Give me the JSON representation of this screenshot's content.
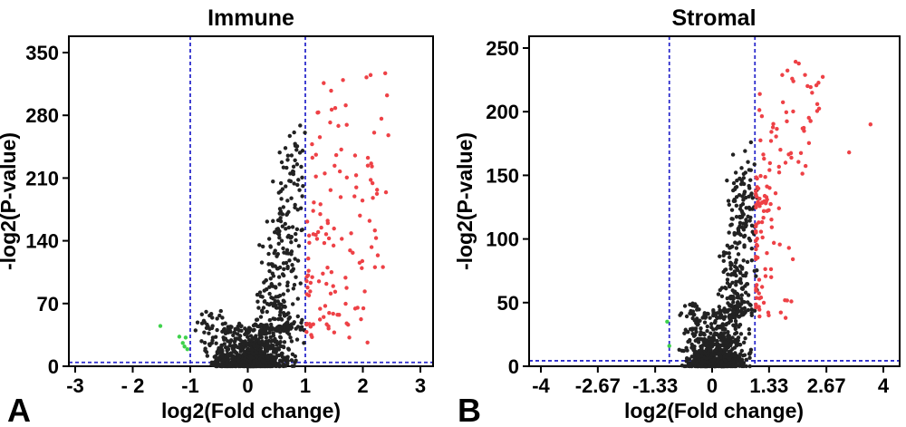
{
  "figure": {
    "background": "#ffffff",
    "colors": {
      "not_significant": "#222222",
      "significant_up": "#ee4146",
      "significant_down": "#3fd24c",
      "threshold_line": "#2b2bcc",
      "axis": "#000000"
    },
    "seed": 7,
    "dot_radius": 2.2
  },
  "chart_data": [
    {
      "type": "scatter",
      "panel_label": "A",
      "title": "Immune",
      "xlabel": "log2(Fold change)",
      "ylabel": "-log2(P-value)",
      "xlim": [
        -3.11,
        3.22
      ],
      "ylim": [
        0,
        368
      ],
      "xticks": {
        "values": [
          -3,
          -2,
          -1,
          0,
          1,
          2,
          3
        ],
        "labels": [
          "-3",
          "- 2",
          "-1",
          "0",
          "1",
          "2",
          "3"
        ]
      },
      "yticks": {
        "values": [
          0,
          70,
          140,
          210,
          280,
          350
        ],
        "labels": [
          "0",
          "70",
          "140",
          "210",
          "280",
          "350"
        ]
      },
      "thresholds": {
        "vlines": [
          -1,
          1
        ],
        "hline": 4.32
      },
      "legend": "none",
      "grid": false,
      "series": [
        {
          "name": "not-significant",
          "color_key": "not_significant",
          "points": [],
          "clusters": [
            {
              "n": 520,
              "x": {
                "type": "normal",
                "mu": 0.05,
                "sd": 0.3,
                "min": -0.72,
                "max": 0.85
              },
              "y": {
                "type": "power",
                "min": 0,
                "max": 13,
                "exp": 2.5
              }
            },
            {
              "n": 260,
              "x": {
                "type": "normal",
                "mu": 0.05,
                "sd": 0.3,
                "min": -0.65,
                "max": 0.85
              },
              "y": {
                "type": "power",
                "min": 0,
                "max": 28,
                "exp": 1.4
              }
            },
            {
              "n": 150,
              "x": {
                "type": "normal",
                "mu": 0.18,
                "sd": 0.34,
                "min": -0.8,
                "max": 0.98
              },
              "y": {
                "type": "uniform",
                "min": 18,
                "max": 48
              }
            },
            {
              "n": 55,
              "x": {
                "type": "normal",
                "mu": -0.55,
                "sd": 0.2,
                "min": -0.95,
                "max": -0.15
              },
              "y": {
                "type": "power",
                "min": 14,
                "max": 62,
                "exp": 1.3
              }
            },
            {
              "n": 130,
              "x": {
                "type": "normal",
                "mu": 0.5,
                "sd": 0.24,
                "min": 0.05,
                "max": 1.0
              },
              "y": {
                "type": "power",
                "min": 40,
                "max": 100,
                "exp": 1.5
              }
            },
            {
              "n": 80,
              "x": {
                "type": "normal",
                "mu": 0.62,
                "sd": 0.2,
                "min": 0.2,
                "max": 1.0
              },
              "y": {
                "type": "uniform",
                "min": 100,
                "max": 175
              }
            },
            {
              "n": 42,
              "x": {
                "type": "normal",
                "mu": 0.75,
                "sd": 0.16,
                "min": 0.35,
                "max": 1.0
              },
              "y": {
                "type": "uniform",
                "min": 175,
                "max": 245
              }
            },
            {
              "n": 7,
              "x": {
                "type": "normal",
                "mu": 0.85,
                "sd": 0.1,
                "min": 0.6,
                "max": 1.0
              },
              "y": {
                "type": "uniform",
                "min": 245,
                "max": 272
              }
            }
          ]
        },
        {
          "name": "up-regulated",
          "color_key": "significant_up",
          "points": [],
          "clusters": [
            {
              "n": 40,
              "x": {
                "type": "power",
                "min": 1.02,
                "max": 2.1,
                "exp": 2.0
              },
              "y": {
                "type": "uniform",
                "min": 25,
                "max": 90
              }
            },
            {
              "n": 45,
              "x": {
                "type": "power",
                "min": 1.02,
                "max": 2.4,
                "exp": 1.8
              },
              "y": {
                "type": "uniform",
                "min": 90,
                "max": 175
              }
            },
            {
              "n": 38,
              "x": {
                "type": "power",
                "min": 1.1,
                "max": 2.5,
                "exp": 1.3
              },
              "y": {
                "type": "uniform",
                "min": 175,
                "max": 285
              }
            },
            {
              "n": 10,
              "x": {
                "type": "uniform",
                "min": 1.3,
                "max": 2.45
              },
              "y": {
                "type": "uniform",
                "min": 285,
                "max": 332
              }
            }
          ]
        },
        {
          "name": "down-regulated",
          "color_key": "significant_down",
          "clusters": [],
          "points": [
            [
              -1.52,
              45
            ],
            [
              -1.19,
              33
            ],
            [
              -1.08,
              32
            ],
            [
              -1.13,
              26
            ],
            [
              -1.1,
              22
            ],
            [
              -1.05,
              19
            ]
          ]
        }
      ]
    },
    {
      "type": "scatter",
      "panel_label": "B",
      "title": "Stromal",
      "xlabel": "log2(Fold change)",
      "ylabel": "-log2(P-value)",
      "xlim": [
        -4.28,
        4.38
      ],
      "ylim": [
        0,
        259
      ],
      "xticks": {
        "values": [
          -4,
          -2.67,
          -1.33,
          0,
          1.33,
          2.67,
          4
        ],
        "labels": [
          "-4",
          "-2.67",
          "-1.33",
          "0",
          "1.33",
          "2.67",
          "4"
        ]
      },
      "yticks": {
        "values": [
          0,
          50,
          100,
          150,
          200,
          250
        ],
        "labels": [
          "0",
          "50",
          "100",
          "150",
          "200",
          "250"
        ]
      },
      "thresholds": {
        "vlines": [
          -1,
          1
        ],
        "hline": 4.32
      },
      "legend": "none",
      "grid": false,
      "series": [
        {
          "name": "not-significant",
          "color_key": "not_significant",
          "points": [],
          "clusters": [
            {
              "n": 500,
              "x": {
                "type": "normal",
                "mu": 0.08,
                "sd": 0.28,
                "min": -0.7,
                "max": 0.9
              },
              "y": {
                "type": "power",
                "min": 0,
                "max": 12,
                "exp": 2.5
              }
            },
            {
              "n": 250,
              "x": {
                "type": "normal",
                "mu": 0.1,
                "sd": 0.3,
                "min": -0.7,
                "max": 0.95
              },
              "y": {
                "type": "power",
                "min": 0,
                "max": 26,
                "exp": 1.4
              }
            },
            {
              "n": 140,
              "x": {
                "type": "normal",
                "mu": 0.2,
                "sd": 0.32,
                "min": -0.8,
                "max": 1.0
              },
              "y": {
                "type": "uniform",
                "min": 16,
                "max": 45
              }
            },
            {
              "n": 50,
              "x": {
                "type": "normal",
                "mu": -0.5,
                "sd": 0.18,
                "min": -0.9,
                "max": -0.1
              },
              "y": {
                "type": "power",
                "min": 12,
                "max": 50,
                "exp": 1.4
              }
            },
            {
              "n": 150,
              "x": {
                "type": "normal",
                "mu": 0.55,
                "sd": 0.22,
                "min": 0.1,
                "max": 1.05
              },
              "y": {
                "type": "power",
                "min": 40,
                "max": 95,
                "exp": 1.4
              }
            },
            {
              "n": 95,
              "x": {
                "type": "normal",
                "mu": 0.68,
                "sd": 0.18,
                "min": 0.25,
                "max": 1.05
              },
              "y": {
                "type": "uniform",
                "min": 95,
                "max": 148
              }
            },
            {
              "n": 11,
              "x": {
                "type": "normal",
                "mu": 0.7,
                "sd": 0.2,
                "min": 0.3,
                "max": 1.0
              },
              "y": {
                "type": "uniform",
                "min": 148,
                "max": 178
              }
            }
          ]
        },
        {
          "name": "up-regulated",
          "color_key": "significant_up",
          "clusters": [
            {
              "n": 35,
              "x": {
                "type": "power",
                "min": 1.02,
                "max": 2.0,
                "exp": 2.0
              },
              "y": {
                "type": "uniform",
                "min": 35,
                "max": 95
              }
            },
            {
              "n": 50,
              "x": {
                "type": "power",
                "min": 1.02,
                "max": 1.6,
                "exp": 2.2
              },
              "y": {
                "type": "uniform",
                "min": 95,
                "max": 150
              }
            },
            {
              "n": 40,
              "x": {
                "type": "power",
                "min": 1.1,
                "max": 2.6,
                "exp": 1.5
              },
              "y": {
                "type": "uniform",
                "min": 150,
                "max": 215
              }
            },
            {
              "n": 12,
              "x": {
                "type": "uniform",
                "min": 1.5,
                "max": 2.6
              },
              "y": {
                "type": "uniform",
                "min": 215,
                "max": 242
              }
            }
          ],
          "points": [
            [
              3.7,
              190
            ],
            [
              3.2,
              168
            ]
          ]
        },
        {
          "name": "down-regulated",
          "color_key": "significant_down",
          "clusters": [],
          "points": [
            [
              -1.05,
              35
            ],
            [
              -1.0,
              16
            ]
          ]
        }
      ]
    }
  ]
}
